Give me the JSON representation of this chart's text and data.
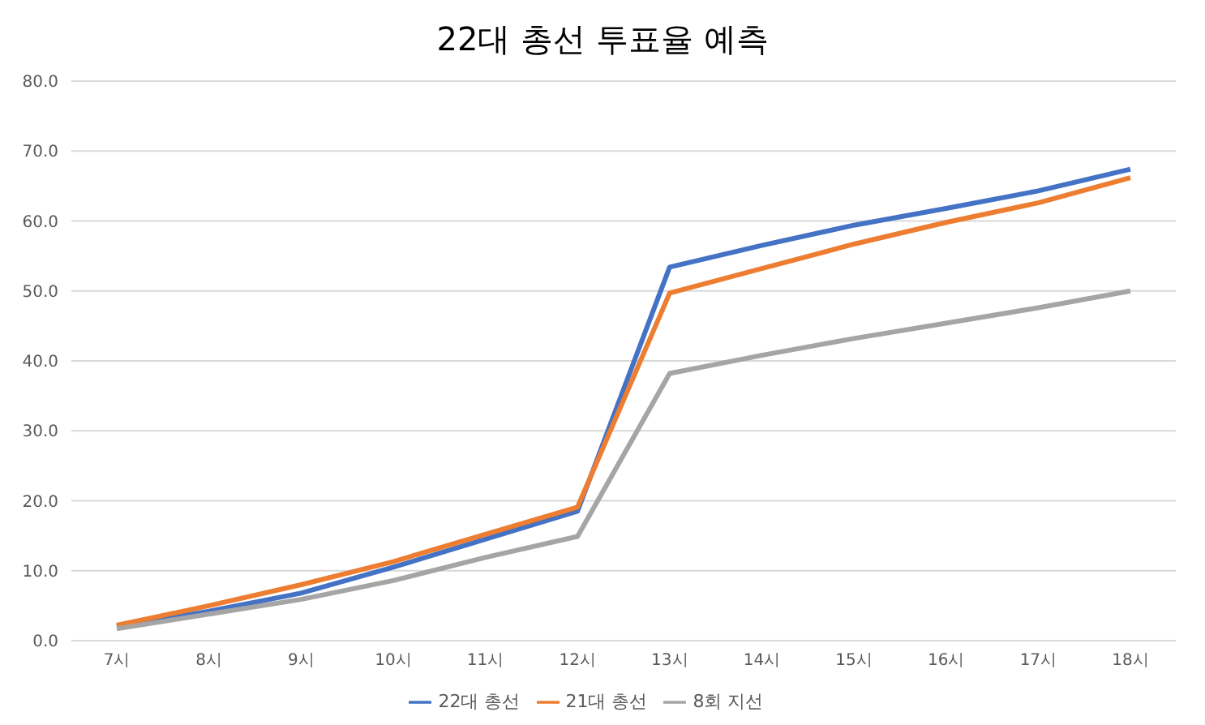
{
  "chart_data": {
    "type": "line",
    "title": "22대 총선 투표율 예측",
    "categories": [
      "7시",
      "8시",
      "9시",
      "10시",
      "11시",
      "12시",
      "13시",
      "14시",
      "15시",
      "16시",
      "17시",
      "18시"
    ],
    "series": [
      {
        "name": "22대 총선",
        "color": "#4472c4",
        "values": [
          2.0,
          4.2,
          6.8,
          10.5,
          14.5,
          18.5,
          53.4,
          56.5,
          59.4,
          61.8,
          64.3,
          67.4
        ]
      },
      {
        "name": "21대 총선",
        "color": "#ed7d31",
        "values": [
          2.2,
          5.0,
          8.0,
          11.3,
          15.2,
          19.1,
          49.7,
          53.2,
          56.7,
          59.8,
          62.6,
          66.2
        ]
      },
      {
        "name": "8회 지선",
        "color": "#a5a5a5",
        "values": [
          1.7,
          3.8,
          5.9,
          8.6,
          11.9,
          14.9,
          38.2,
          40.8,
          43.2,
          45.4,
          47.6,
          50.0
        ]
      }
    ],
    "ylim": [
      0,
      80
    ],
    "yticks": [
      {
        "value": 0,
        "label": "0.0"
      },
      {
        "value": 10,
        "label": "10.0"
      },
      {
        "value": 20,
        "label": "20.0"
      },
      {
        "value": 30,
        "label": "30.0"
      },
      {
        "value": 40,
        "label": "40.0"
      },
      {
        "value": 50,
        "label": "50.0"
      },
      {
        "value": 60,
        "label": "60.0"
      },
      {
        "value": 70,
        "label": "70.0"
      },
      {
        "value": 80,
        "label": "80.0"
      }
    ],
    "grid": "y",
    "legend": "bottom",
    "marker": "none",
    "line_style": "solid"
  }
}
